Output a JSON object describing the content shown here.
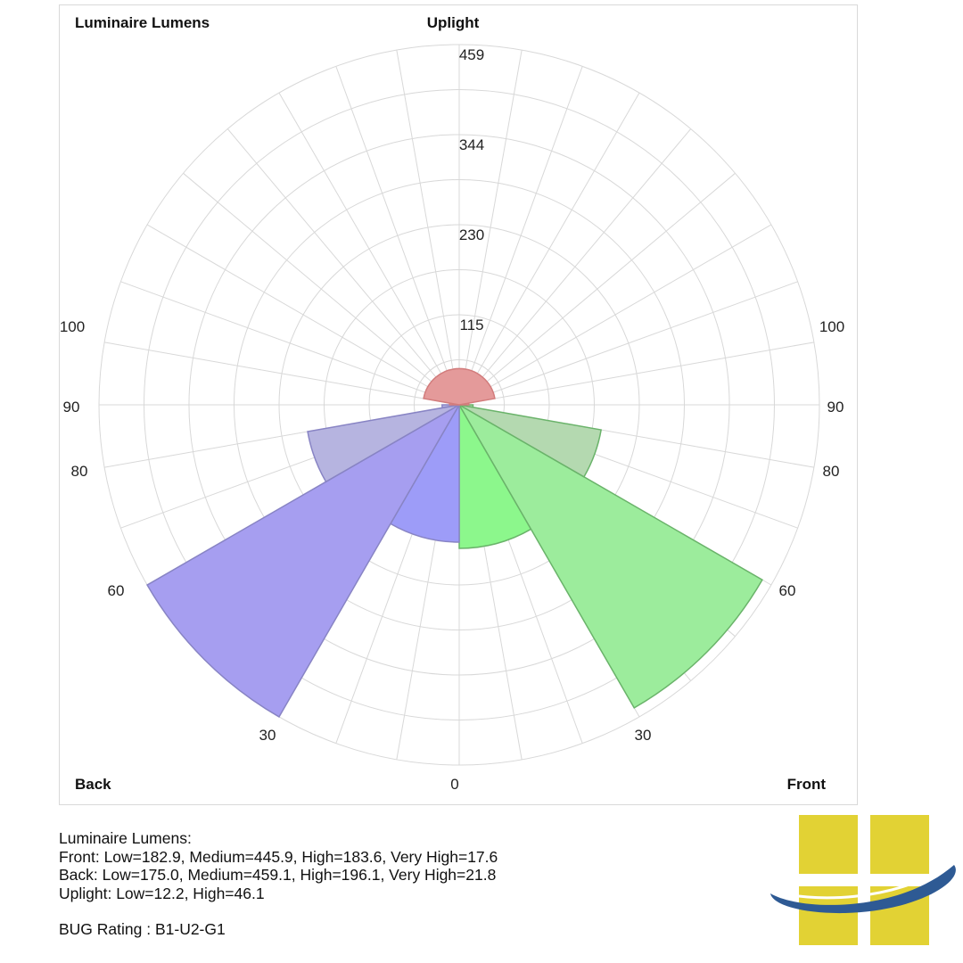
{
  "chart_data": {
    "type": "polar",
    "title": "Luminaire Lumens",
    "top_label": "Uplight",
    "left_corner_label": "Back",
    "right_corner_label": "Front",
    "bottom_label": "0",
    "radial_ticks": [
      115,
      230,
      344,
      459
    ],
    "radial_tick_labels": [
      "115",
      "230",
      "344",
      "459"
    ],
    "r_max": 459,
    "angle_labels_left": [
      "30",
      "60",
      "80",
      "90",
      "100"
    ],
    "angle_labels_right": [
      "30",
      "60",
      "80",
      "90",
      "100"
    ],
    "zones": [
      {
        "side": "front",
        "name": "Low",
        "from_deg": 0,
        "to_deg": 30,
        "value": 182.9,
        "color": "#8cf78c"
      },
      {
        "side": "front",
        "name": "Medium",
        "from_deg": 30,
        "to_deg": 60,
        "value": 445.9,
        "color": "#9cec9c"
      },
      {
        "side": "front",
        "name": "High",
        "from_deg": 60,
        "to_deg": 80,
        "value": 183.6,
        "color": "#b4d9b0"
      },
      {
        "side": "front",
        "name": "Very High",
        "from_deg": 80,
        "to_deg": 90,
        "value": 17.6,
        "color": "#b4d9b0"
      },
      {
        "side": "back",
        "name": "Low",
        "from_deg": 0,
        "to_deg": 30,
        "value": 175.0,
        "color": "#9d9cf8"
      },
      {
        "side": "back",
        "name": "Medium",
        "from_deg": 30,
        "to_deg": 60,
        "value": 459.1,
        "color": "#a69ef0"
      },
      {
        "side": "back",
        "name": "High",
        "from_deg": 60,
        "to_deg": 80,
        "value": 196.1,
        "color": "#b6b4e0"
      },
      {
        "side": "back",
        "name": "Very High",
        "from_deg": 80,
        "to_deg": 90,
        "value": 21.8,
        "color": "#b6b4e0"
      },
      {
        "side": "up",
        "name": "Low",
        "from_deg": 90,
        "to_deg": 100,
        "value": 12.2,
        "color": "#e49a9a"
      },
      {
        "side": "up",
        "name": "High",
        "from_deg": 100,
        "to_deg": 180,
        "value": 46.1,
        "color": "#e49a9a"
      }
    ]
  },
  "summary": {
    "heading": "Luminaire Lumens:",
    "front": "Front: Low=182.9, Medium=445.9, High=183.6, Very High=17.6",
    "back": "Back: Low=175.0, Medium=459.1, High=196.1, Very High=21.8",
    "uplight": "Uplight: Low=12.2, High=46.1",
    "rating": "BUG Rating : B1-U2-G1"
  },
  "colors": {
    "grid": "#d8d8d8",
    "logo_yellow": "#e2d234",
    "logo_blue": "#2e5a94"
  }
}
